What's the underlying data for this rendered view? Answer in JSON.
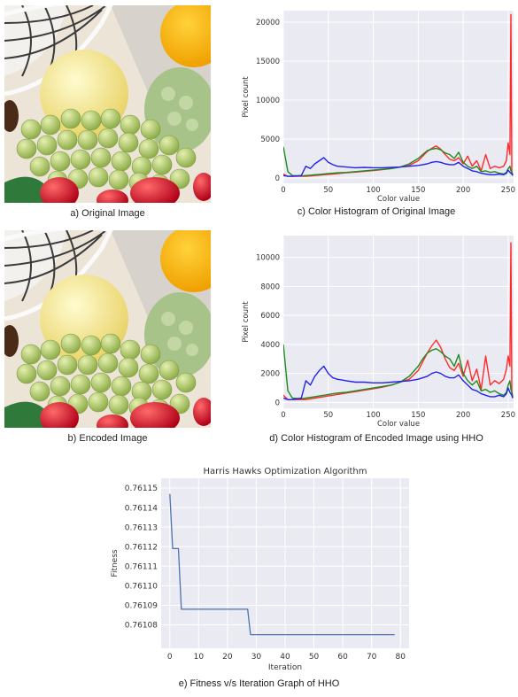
{
  "captions": {
    "a": "a) Original Image",
    "b": "b) Encoded Image",
    "c": "c) Color Histogram of Original Image",
    "d": "d) Color Histogram of Encoded Image using HHO",
    "e": "e) Fitness v/s Iteration Graph of HHO"
  },
  "colors": {
    "red": "#ff2b2b",
    "green": "#1f8a1f",
    "blue": "#2222ee",
    "hho_line": "#4c72b0",
    "plot_bg": "#eaeaf2"
  },
  "chart_data": [
    {
      "type": "line",
      "id": "hist-original",
      "title": "",
      "xlabel": "Color value",
      "ylabel": "Pixel count",
      "xlim": [
        0,
        256
      ],
      "ylim": [
        -700,
        21500
      ],
      "xticks": [
        0,
        50,
        100,
        150,
        200,
        250
      ],
      "yticks": [
        0,
        5000,
        10000,
        15000,
        20000
      ],
      "grid": true,
      "x": [
        0,
        5,
        10,
        20,
        25,
        30,
        35,
        40,
        45,
        50,
        55,
        60,
        70,
        80,
        90,
        100,
        110,
        120,
        130,
        140,
        150,
        155,
        160,
        165,
        170,
        175,
        180,
        185,
        190,
        195,
        200,
        205,
        210,
        215,
        220,
        225,
        230,
        235,
        240,
        245,
        248,
        250,
        252,
        253,
        254,
        255
      ],
      "series": [
        {
          "color": "red",
          "values": [
            500,
            200,
            200,
            200,
            200,
            250,
            300,
            350,
            400,
            450,
            500,
            550,
            650,
            750,
            850,
            950,
            1050,
            1200,
            1400,
            1600,
            2200,
            2800,
            3400,
            3800,
            4100,
            3700,
            3000,
            2400,
            2200,
            2600,
            1800,
            2800,
            1500,
            2200,
            900,
            3000,
            1200,
            1500,
            1300,
            1500,
            2200,
            4500,
            3000,
            21000,
            800,
            300
          ]
        },
        {
          "color": "green",
          "values": [
            4000,
            800,
            300,
            250,
            300,
            350,
            400,
            450,
            500,
            550,
            600,
            650,
            700,
            800,
            900,
            1000,
            1100,
            1200,
            1400,
            1800,
            2500,
            3000,
            3500,
            3700,
            3800,
            3600,
            3200,
            3000,
            2500,
            3300,
            2000,
            1500,
            1200,
            1500,
            800,
            900,
            700,
            800,
            600,
            500,
            700,
            1200,
            1500,
            900,
            700,
            400
          ]
        },
        {
          "color": "blue",
          "values": [
            300,
            200,
            200,
            300,
            1500,
            1200,
            1800,
            2200,
            2600,
            2000,
            1700,
            1500,
            1400,
            1300,
            1350,
            1300,
            1300,
            1350,
            1400,
            1500,
            1600,
            1700,
            1800,
            2000,
            2100,
            2000,
            1800,
            1700,
            1700,
            2000,
            1500,
            1200,
            900,
            800,
            600,
            500,
            400,
            400,
            500,
            400,
            600,
            1000,
            700,
            600,
            500,
            300
          ]
        }
      ]
    },
    {
      "type": "line",
      "id": "hist-encoded",
      "title": "",
      "xlabel": "Color value",
      "ylabel": "Pixel count",
      "xlim": [
        0,
        256
      ],
      "ylim": [
        -400,
        11500
      ],
      "xticks": [
        0,
        50,
        100,
        150,
        200,
        250
      ],
      "yticks": [
        0,
        2000,
        4000,
        6000,
        8000,
        10000
      ],
      "grid": true,
      "x": [
        0,
        5,
        10,
        20,
        25,
        30,
        35,
        40,
        45,
        50,
        55,
        60,
        70,
        80,
        90,
        100,
        110,
        120,
        130,
        140,
        150,
        155,
        160,
        165,
        170,
        175,
        180,
        185,
        190,
        195,
        200,
        205,
        210,
        215,
        220,
        225,
        230,
        235,
        240,
        245,
        248,
        250,
        252,
        253,
        254,
        255
      ],
      "series": [
        {
          "color": "red",
          "values": [
            500,
            200,
            200,
            200,
            200,
            250,
            300,
            350,
            400,
            450,
            500,
            550,
            650,
            750,
            850,
            950,
            1050,
            1200,
            1400,
            1600,
            2200,
            2800,
            3400,
            3900,
            4300,
            3800,
            3000,
            2400,
            2200,
            2700,
            1800,
            2900,
            1500,
            2300,
            900,
            3200,
            1200,
            1500,
            1300,
            1600,
            2300,
            3200,
            2500,
            11000,
            800,
            300
          ]
        },
        {
          "color": "green",
          "values": [
            4000,
            800,
            300,
            250,
            300,
            350,
            400,
            450,
            500,
            550,
            600,
            650,
            700,
            800,
            900,
            1000,
            1100,
            1200,
            1400,
            1800,
            2500,
            3000,
            3400,
            3600,
            3700,
            3500,
            3200,
            3000,
            2500,
            3300,
            2000,
            1500,
            1200,
            1500,
            800,
            900,
            700,
            800,
            600,
            500,
            700,
            1200,
            1500,
            900,
            700,
            400
          ]
        },
        {
          "color": "blue",
          "values": [
            300,
            200,
            200,
            300,
            1500,
            1200,
            1800,
            2200,
            2500,
            2000,
            1700,
            1600,
            1500,
            1400,
            1400,
            1350,
            1350,
            1400,
            1450,
            1500,
            1600,
            1700,
            1800,
            2000,
            2100,
            2000,
            1800,
            1700,
            1700,
            1900,
            1500,
            1200,
            900,
            800,
            600,
            500,
            400,
            400,
            500,
            400,
            600,
            1000,
            700,
            600,
            500,
            300
          ]
        }
      ]
    },
    {
      "type": "line",
      "id": "hho-fitness",
      "title": "Harris Hawks Optimization Algorithm",
      "xlabel": "Iteration",
      "ylabel": "Fitness",
      "xlim": [
        -3,
        83
      ],
      "ylim": [
        0.761068,
        0.761155
      ],
      "xticks": [
        0,
        10,
        20,
        30,
        40,
        50,
        60,
        70,
        80
      ],
      "yticks": [
        0.76108,
        0.76109,
        0.7611,
        0.76111,
        0.76112,
        0.76113,
        0.76114,
        0.76115
      ],
      "ytick_labels": [
        "0.76108",
        "0.76109",
        "0.76110",
        "0.76111",
        "0.76112",
        "0.76113",
        "0.76114",
        "0.76115"
      ],
      "grid": true,
      "series": [
        {
          "color": "hho_line",
          "x": [
            0,
            1,
            3,
            4,
            27,
            28,
            78
          ],
          "values": [
            0.761147,
            0.761119,
            0.761119,
            0.761088,
            0.761088,
            0.761075,
            0.761075
          ]
        }
      ]
    }
  ]
}
